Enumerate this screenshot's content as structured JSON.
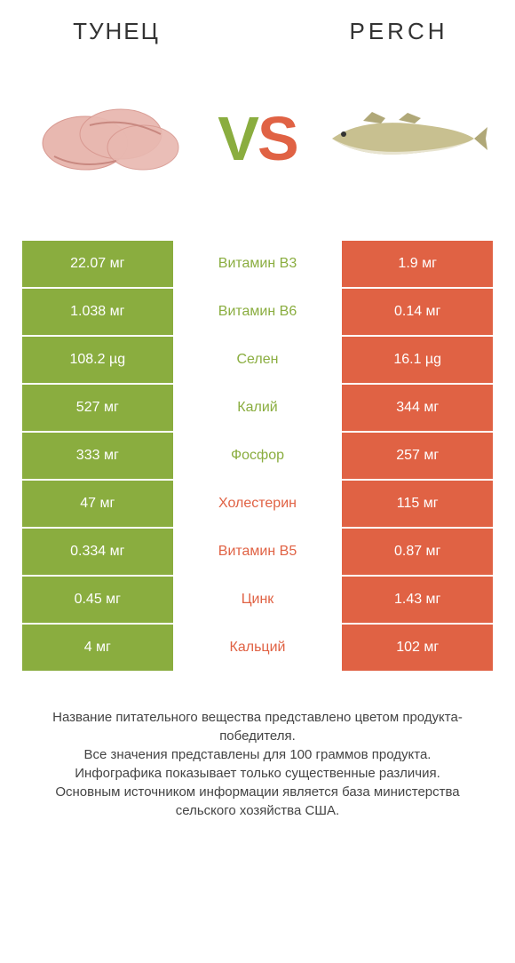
{
  "colors": {
    "left": "#8aad3f",
    "right": "#e06244",
    "tuna_fill": "#e8b8b0",
    "tuna_edge": "#d89890",
    "fish_body": "#c8c090",
    "fish_belly": "#e8e4d0",
    "fish_fin": "#b0a878"
  },
  "header": {
    "left_title": "Тунец",
    "right_title": "Perch",
    "vs_v": "V",
    "vs_s": "S"
  },
  "rows": [
    {
      "left": "22.07 мг",
      "mid": "Витамин B3",
      "right": "1.9 мг",
      "winner": "left"
    },
    {
      "left": "1.038 мг",
      "mid": "Витамин B6",
      "right": "0.14 мг",
      "winner": "left"
    },
    {
      "left": "108.2 µg",
      "mid": "Селен",
      "right": "16.1 µg",
      "winner": "left"
    },
    {
      "left": "527 мг",
      "mid": "Калий",
      "right": "344 мг",
      "winner": "left"
    },
    {
      "left": "333 мг",
      "mid": "Фосфор",
      "right": "257 мг",
      "winner": "left"
    },
    {
      "left": "47 мг",
      "mid": "Холестерин",
      "right": "115 мг",
      "winner": "right"
    },
    {
      "left": "0.334 мг",
      "mid": "Витамин B5",
      "right": "0.87 мг",
      "winner": "right"
    },
    {
      "left": "0.45 мг",
      "mid": "Цинк",
      "right": "1.43 мг",
      "winner": "right"
    },
    {
      "left": "4 мг",
      "mid": "Кальций",
      "right": "102 мг",
      "winner": "right"
    }
  ],
  "footer": {
    "line1": "Название питательного вещества представлено цветом продукта-победителя.",
    "line2": "Все значения представлены для 100 граммов продукта.",
    "line3": "Инфографика показывает только существенные различия.",
    "line4": "Основным источником информации является база министерства сельского хозяйства США."
  }
}
